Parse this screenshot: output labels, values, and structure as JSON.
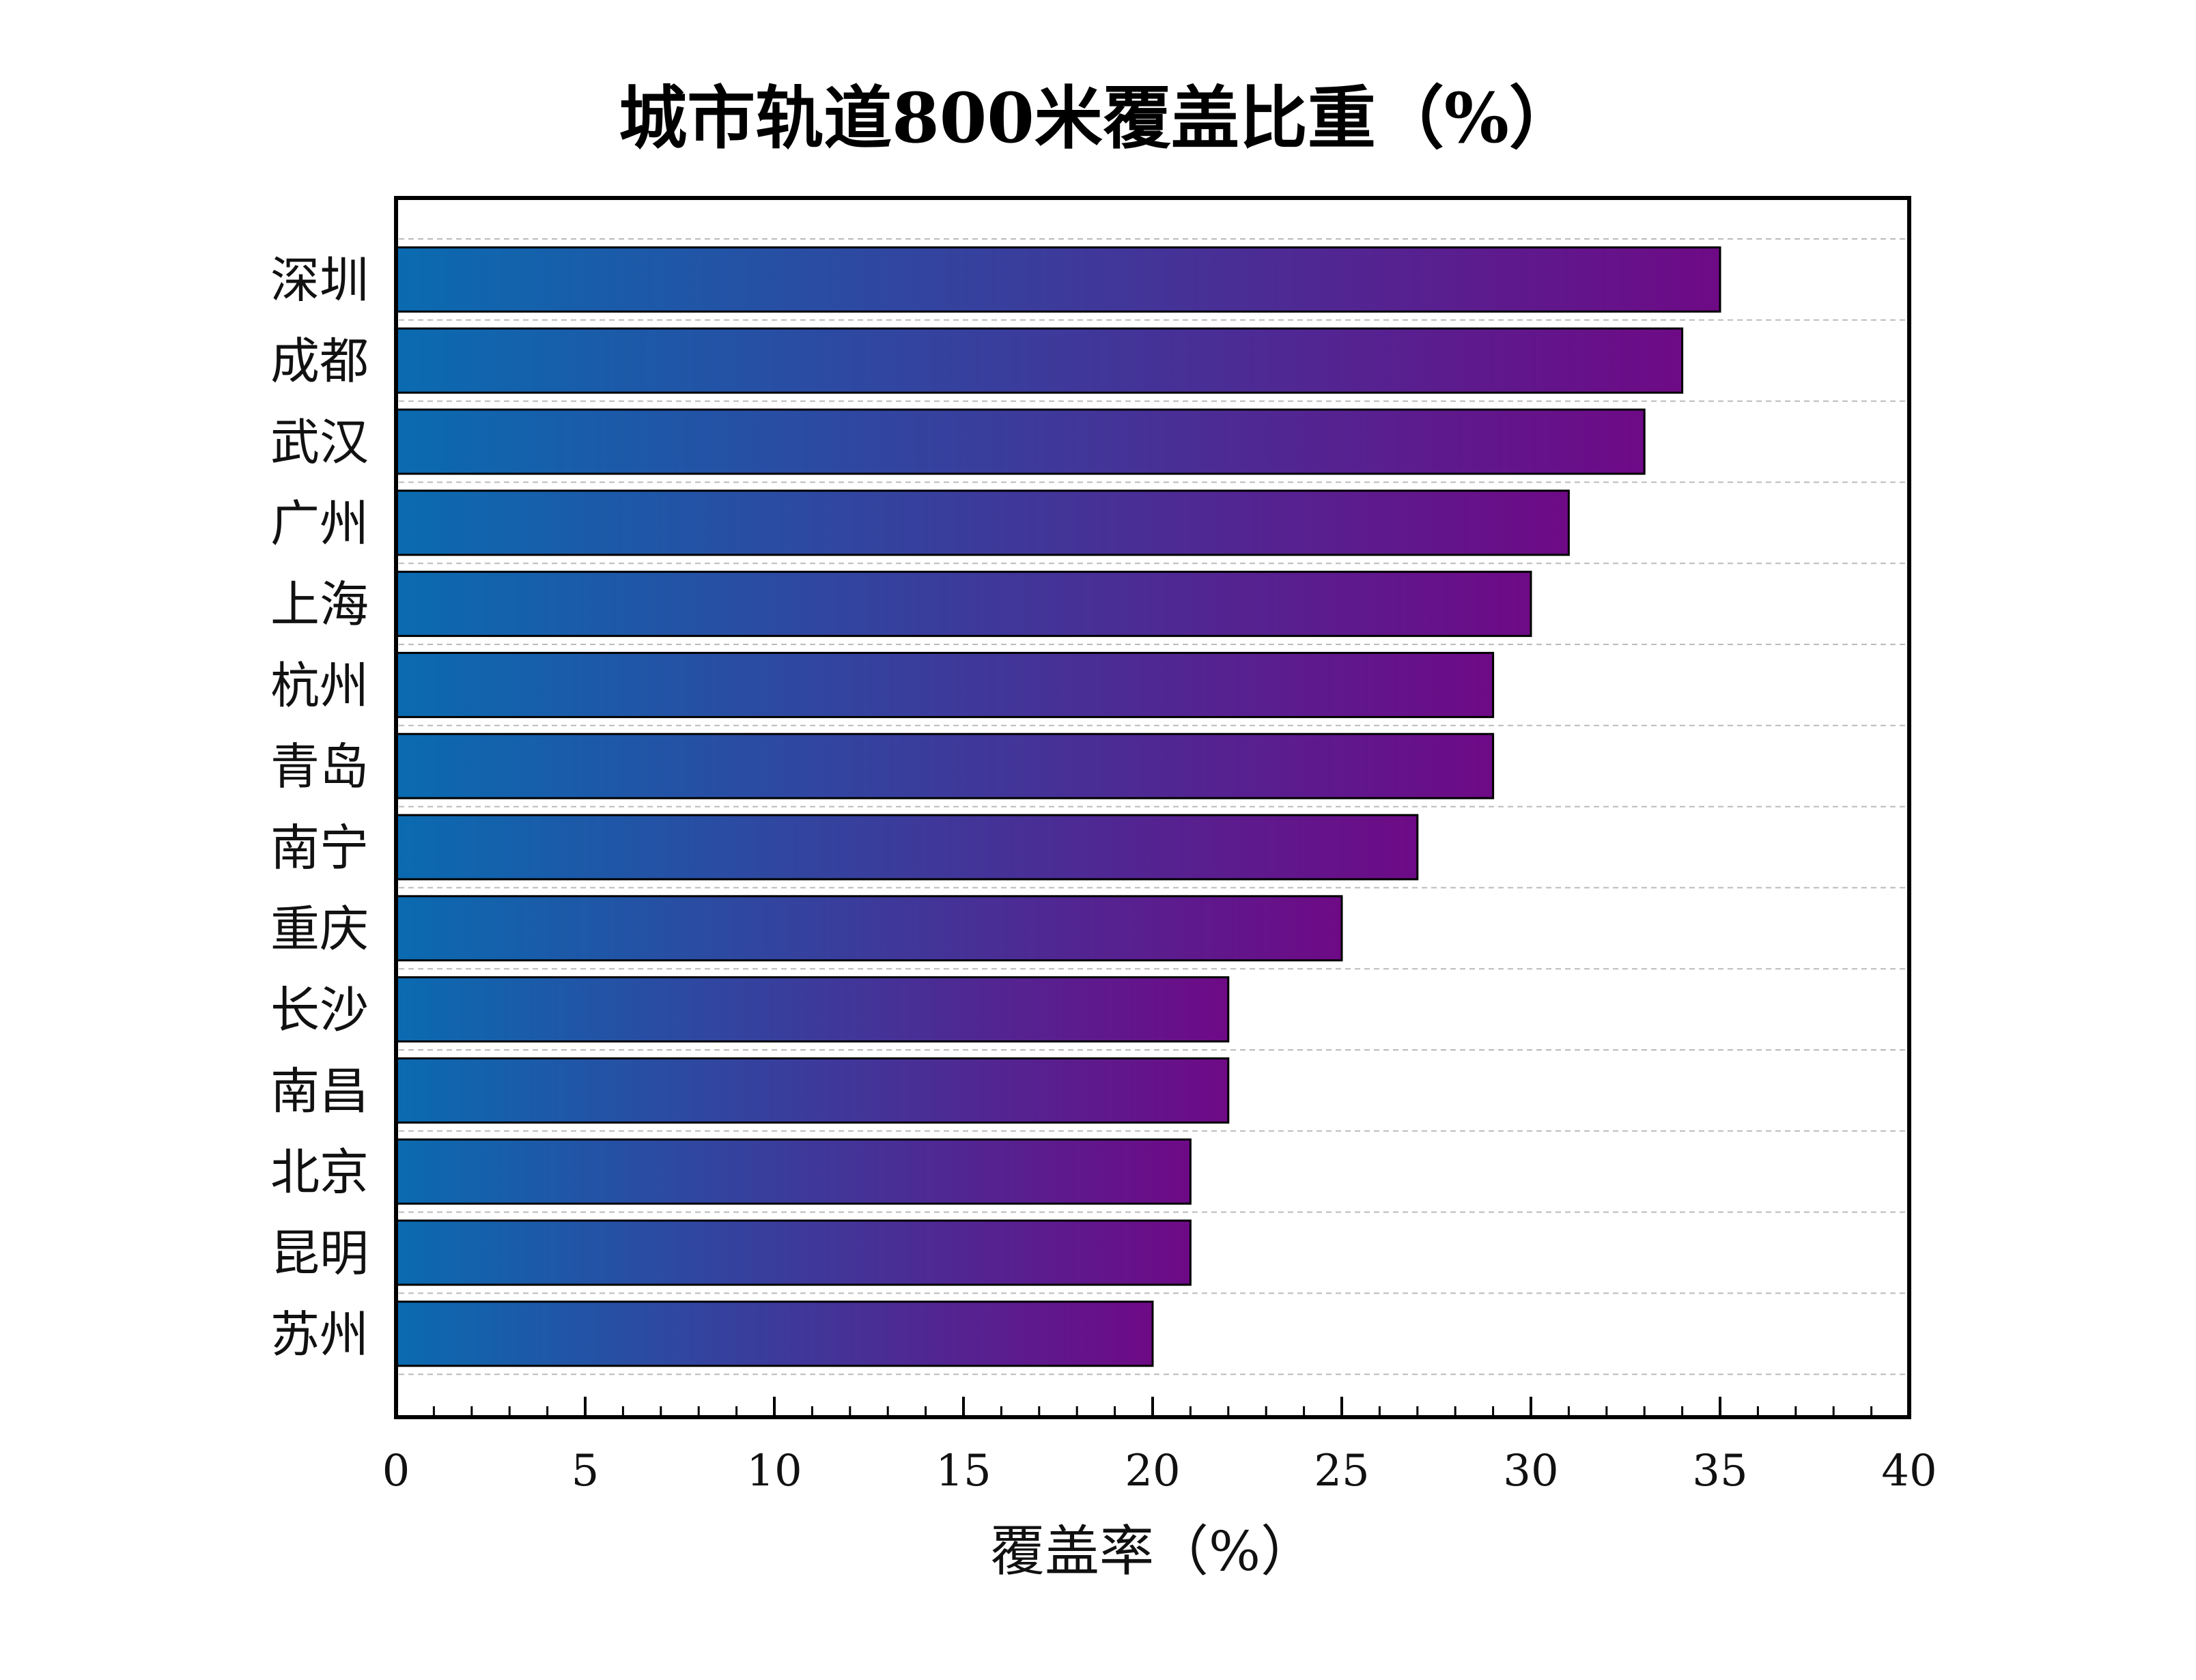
{
  "chart_data": {
    "type": "bar",
    "orientation": "horizontal",
    "title": "城市轨道800米覆盖比重（%）",
    "xlabel": "覆盖率（%）",
    "ylabel": "",
    "xlim": [
      0,
      40
    ],
    "xticks": [
      0,
      5,
      10,
      15,
      20,
      25,
      30,
      35,
      40
    ],
    "grid": "horizontal dashed",
    "categories": [
      "深圳",
      "成都",
      "武汉",
      "广州",
      "上海",
      "杭州",
      "青岛",
      "南宁",
      "重庆",
      "长沙",
      "南昌",
      "北京",
      "昆明",
      "苏州"
    ],
    "values": [
      35,
      34,
      33,
      31,
      30,
      29,
      29,
      27,
      25,
      22,
      22,
      21,
      21,
      20
    ],
    "colors": {
      "gradient_start": "#0A6BB0",
      "gradient_end": "#6E0A86",
      "bar_edge": "#000000",
      "grid": "#BBBBBB"
    }
  }
}
